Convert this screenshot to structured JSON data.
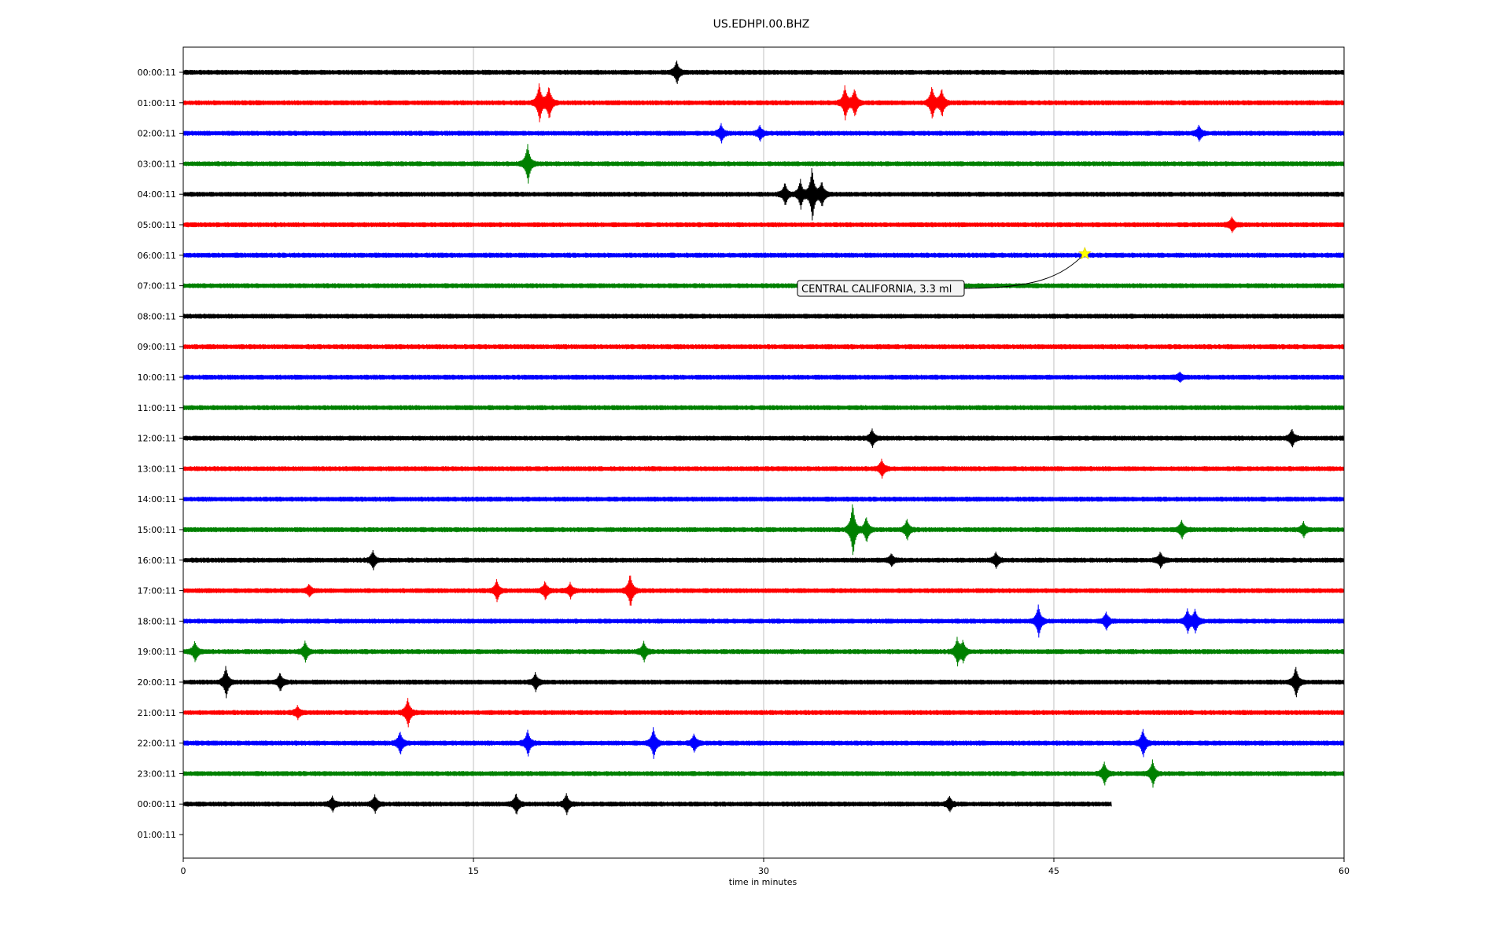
{
  "chart_data": {
    "type": "line",
    "title": "US.EDHPI.00.BHZ",
    "xlabel": "time in minutes",
    "ylabel": "",
    "xlim": [
      0,
      60
    ],
    "x_ticks": [
      {
        "value": 0,
        "label": "0"
      },
      {
        "value": 15,
        "label": "15"
      },
      {
        "value": 30,
        "label": "30"
      },
      {
        "value": 45,
        "label": "45"
      },
      {
        "value": 60,
        "label": "60"
      }
    ],
    "grid": "vertical at x ticks",
    "row_labels": [
      "00:00:11",
      "01:00:11",
      "02:00:11",
      "03:00:11",
      "04:00:11",
      "05:00:11",
      "06:00:11",
      "07:00:11",
      "08:00:11",
      "09:00:11",
      "10:00:11",
      "11:00:11",
      "12:00:11",
      "13:00:11",
      "14:00:11",
      "15:00:11",
      "16:00:11",
      "17:00:11",
      "18:00:11",
      "19:00:11",
      "20:00:11",
      "21:00:11",
      "22:00:11",
      "23:00:11",
      "00:00:11",
      "01:00:11"
    ],
    "trace_colors": [
      "#000000",
      "#ff0000",
      "#0000ff",
      "#008000"
    ],
    "traces": [
      {
        "row": 0,
        "color": "#000000",
        "end_minute": 60,
        "events": [
          [
            25.5,
            0.4
          ]
        ]
      },
      {
        "row": 1,
        "color": "#ff0000",
        "end_minute": 60,
        "events": [
          [
            18.4,
            0.7
          ],
          [
            18.9,
            0.6
          ],
          [
            34.2,
            0.6
          ],
          [
            34.7,
            0.5
          ],
          [
            38.7,
            0.6
          ],
          [
            39.2,
            0.5
          ]
        ]
      },
      {
        "row": 2,
        "color": "#0000ff",
        "end_minute": 60,
        "events": [
          [
            27.8,
            0.3
          ],
          [
            29.8,
            0.25
          ],
          [
            52.5,
            0.25
          ]
        ]
      },
      {
        "row": 3,
        "color": "#008000",
        "end_minute": 60,
        "events": [
          [
            17.8,
            0.7
          ]
        ]
      },
      {
        "row": 4,
        "color": "#000000",
        "end_minute": 60,
        "events": [
          [
            31.1,
            0.4
          ],
          [
            31.9,
            0.5
          ],
          [
            32.5,
            1.0
          ],
          [
            33.0,
            0.45
          ]
        ]
      },
      {
        "row": 5,
        "color": "#ff0000",
        "end_minute": 60,
        "events": [
          [
            54.2,
            0.25
          ]
        ]
      },
      {
        "row": 6,
        "color": "#0000ff",
        "end_minute": 60,
        "events": []
      },
      {
        "row": 7,
        "color": "#008000",
        "end_minute": 60,
        "events": []
      },
      {
        "row": 8,
        "color": "#000000",
        "end_minute": 60,
        "events": []
      },
      {
        "row": 9,
        "color": "#ff0000",
        "end_minute": 60,
        "events": []
      },
      {
        "row": 10,
        "color": "#0000ff",
        "end_minute": 60,
        "events": [
          [
            51.5,
            0.15
          ]
        ]
      },
      {
        "row": 11,
        "color": "#008000",
        "end_minute": 60,
        "events": []
      },
      {
        "row": 12,
        "color": "#000000",
        "end_minute": 60,
        "events": [
          [
            35.6,
            0.3
          ],
          [
            57.3,
            0.3
          ]
        ]
      },
      {
        "row": 13,
        "color": "#ff0000",
        "end_minute": 60,
        "events": [
          [
            36.1,
            0.3
          ]
        ]
      },
      {
        "row": 14,
        "color": "#0000ff",
        "end_minute": 60,
        "events": []
      },
      {
        "row": 15,
        "color": "#008000",
        "end_minute": 60,
        "events": [
          [
            34.6,
            1.0
          ],
          [
            35.3,
            0.45
          ],
          [
            37.4,
            0.35
          ],
          [
            51.6,
            0.3
          ],
          [
            57.9,
            0.25
          ]
        ]
      },
      {
        "row": 16,
        "color": "#000000",
        "end_minute": 60,
        "events": [
          [
            9.8,
            0.3
          ],
          [
            36.6,
            0.2
          ],
          [
            42.0,
            0.25
          ],
          [
            50.5,
            0.25
          ]
        ]
      },
      {
        "row": 17,
        "color": "#ff0000",
        "end_minute": 60,
        "events": [
          [
            6.5,
            0.2
          ],
          [
            16.2,
            0.35
          ],
          [
            18.7,
            0.3
          ],
          [
            20.0,
            0.25
          ],
          [
            23.1,
            0.6
          ]
        ]
      },
      {
        "row": 18,
        "color": "#0000ff",
        "end_minute": 60,
        "events": [
          [
            44.2,
            0.55
          ],
          [
            47.7,
            0.3
          ],
          [
            51.9,
            0.4
          ],
          [
            52.3,
            0.4
          ]
        ]
      },
      {
        "row": 19,
        "color": "#008000",
        "end_minute": 60,
        "events": [
          [
            0.6,
            0.35
          ],
          [
            6.3,
            0.35
          ],
          [
            23.8,
            0.35
          ],
          [
            40.0,
            0.45
          ],
          [
            40.3,
            0.35
          ]
        ]
      },
      {
        "row": 20,
        "color": "#000000",
        "end_minute": 60,
        "events": [
          [
            2.2,
            0.55
          ],
          [
            5.0,
            0.3
          ],
          [
            18.2,
            0.3
          ],
          [
            57.5,
            0.55
          ]
        ]
      },
      {
        "row": 21,
        "color": "#ff0000",
        "end_minute": 60,
        "events": [
          [
            5.9,
            0.2
          ],
          [
            11.6,
            0.5
          ]
        ]
      },
      {
        "row": 22,
        "color": "#0000ff",
        "end_minute": 60,
        "events": [
          [
            11.2,
            0.4
          ],
          [
            17.8,
            0.45
          ],
          [
            24.3,
            0.55
          ],
          [
            26.4,
            0.3
          ],
          [
            49.6,
            0.5
          ]
        ]
      },
      {
        "row": 23,
        "color": "#008000",
        "end_minute": 60,
        "events": [
          [
            47.6,
            0.4
          ],
          [
            50.1,
            0.45
          ]
        ]
      },
      {
        "row": 24,
        "color": "#000000",
        "end_minute": 48,
        "events": [
          [
            7.7,
            0.25
          ],
          [
            9.9,
            0.3
          ],
          [
            17.2,
            0.35
          ],
          [
            19.8,
            0.35
          ],
          [
            39.6,
            0.25
          ]
        ]
      }
    ],
    "annotation": {
      "text": "CENTRAL CALIFORNIA, 3.3 ml",
      "marker": "star",
      "marker_color": "#ffff00",
      "row": 6,
      "minute": 46.6
    }
  }
}
